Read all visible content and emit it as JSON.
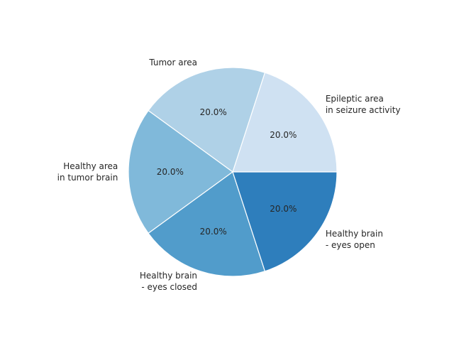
{
  "chart_data": {
    "type": "pie",
    "categories": [
      [
        "Epileptic area",
        "in seizure activity"
      ],
      [
        "Tumor area"
      ],
      [
        "Healthy area",
        "in tumor brain"
      ],
      [
        "Healthy brain",
        "- eyes closed"
      ],
      [
        "Healthy brain",
        "- eyes open"
      ]
    ],
    "values": [
      20,
      20,
      20,
      20,
      20
    ],
    "value_labels": [
      "20.0%",
      "20.0%",
      "20.0%",
      "20.0%",
      "20.0%"
    ],
    "colors": [
      "#cfe1f2",
      "#afd1e7",
      "#80b9da",
      "#519ccb",
      "#2e7ebc"
    ],
    "start_angle_deg": 0,
    "direction": "counterclockwise",
    "legend": "none"
  }
}
